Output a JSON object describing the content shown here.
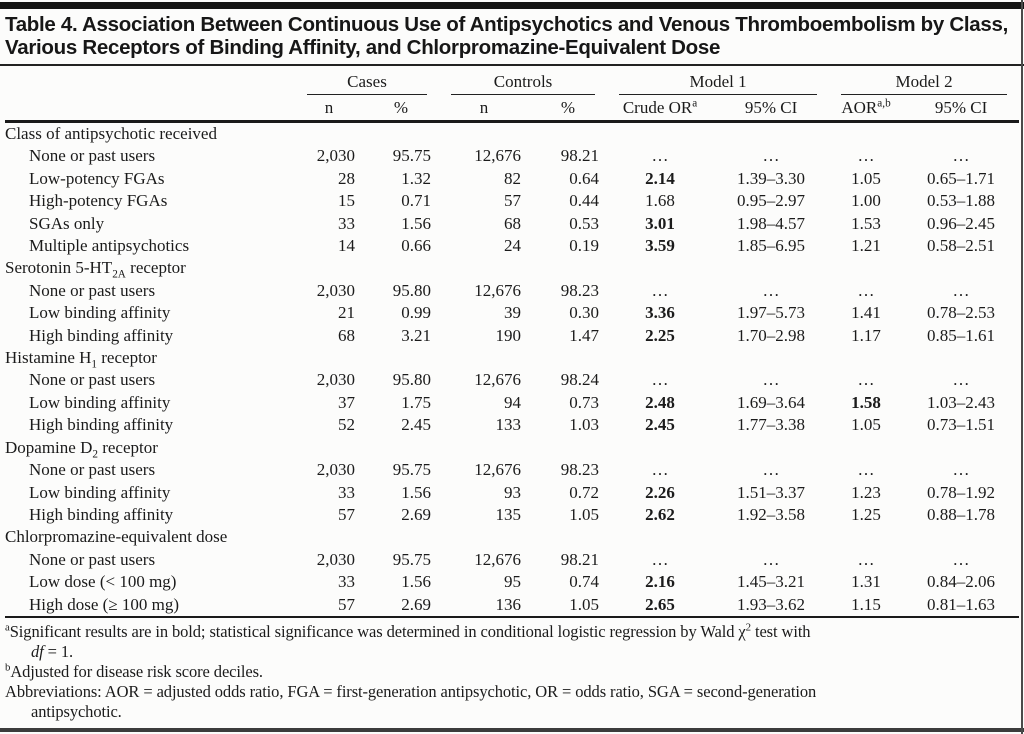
{
  "title": "Table 4. Association Between Continuous Use of Antipsychotics and Venous Thromboembolism by Class, Various Receptors of Binding Affinity, and Chlorpromazine-Equivalent Dose",
  "colors": {
    "background": "#fcfcfb",
    "text": "#1b1b1b",
    "rule": "#1a1a1a"
  },
  "table": {
    "col_groups": [
      {
        "label": "Cases",
        "span": 2
      },
      {
        "label": "Controls",
        "span": 2
      },
      {
        "label": "Model 1",
        "span": 2
      },
      {
        "label": "Model 2",
        "span": 2
      }
    ],
    "sub_headers": [
      [
        {
          "t": "n"
        }
      ],
      [
        {
          "t": "%"
        }
      ],
      [
        {
          "t": "n"
        }
      ],
      [
        {
          "t": "%"
        }
      ],
      [
        {
          "t": "Crude OR"
        },
        {
          "t": "a",
          "sup": true
        }
      ],
      [
        {
          "t": "95% CI"
        }
      ],
      [
        {
          "t": "AOR"
        },
        {
          "t": "a,b",
          "sup": true
        }
      ],
      [
        {
          "t": "95% CI"
        }
      ]
    ],
    "sections": [
      {
        "label": [
          {
            "t": "Class of antipsychotic received"
          }
        ],
        "rows": [
          {
            "label": [
              {
                "t": "None or past users"
              }
            ],
            "cells": [
              "2,030",
              "95.75",
              "12,676",
              "98.21",
              "…",
              "…",
              "…",
              "…"
            ],
            "bold": []
          },
          {
            "label": [
              {
                "t": "Low-potency FGAs"
              }
            ],
            "cells": [
              "28",
              "1.32",
              "82",
              "0.64",
              "2.14",
              "1.39–3.30",
              "1.05",
              "0.65–1.71"
            ],
            "bold": [
              4
            ]
          },
          {
            "label": [
              {
                "t": "High-potency FGAs"
              }
            ],
            "cells": [
              "15",
              "0.71",
              "57",
              "0.44",
              "1.68",
              "0.95–2.97",
              "1.00",
              "0.53–1.88"
            ],
            "bold": []
          },
          {
            "label": [
              {
                "t": "SGAs only"
              }
            ],
            "cells": [
              "33",
              "1.56",
              "68",
              "0.53",
              "3.01",
              "1.98–4.57",
              "1.53",
              "0.96–2.45"
            ],
            "bold": [
              4
            ]
          },
          {
            "label": [
              {
                "t": "Multiple antipsychotics"
              }
            ],
            "cells": [
              "14",
              "0.66",
              "24",
              "0.19",
              "3.59",
              "1.85–6.95",
              "1.21",
              "0.58–2.51"
            ],
            "bold": [
              4
            ]
          }
        ]
      },
      {
        "label": [
          {
            "t": "Serotonin 5-HT"
          },
          {
            "t": "2A",
            "sub": true
          },
          {
            "t": " receptor"
          }
        ],
        "rows": [
          {
            "label": [
              {
                "t": "None or past users"
              }
            ],
            "cells": [
              "2,030",
              "95.80",
              "12,676",
              "98.23",
              "…",
              "…",
              "…",
              "…"
            ],
            "bold": []
          },
          {
            "label": [
              {
                "t": "Low binding affinity"
              }
            ],
            "cells": [
              "21",
              "0.99",
              "39",
              "0.30",
              "3.36",
              "1.97–5.73",
              "1.41",
              "0.78–2.53"
            ],
            "bold": [
              4
            ]
          },
          {
            "label": [
              {
                "t": "High binding affinity"
              }
            ],
            "cells": [
              "68",
              "3.21",
              "190",
              "1.47",
              "2.25",
              "1.70–2.98",
              "1.17",
              "0.85–1.61"
            ],
            "bold": [
              4
            ]
          }
        ]
      },
      {
        "label": [
          {
            "t": "Histamine H"
          },
          {
            "t": "1",
            "sub": true
          },
          {
            "t": " receptor"
          }
        ],
        "rows": [
          {
            "label": [
              {
                "t": "None or past users"
              }
            ],
            "cells": [
              "2,030",
              "95.80",
              "12,676",
              "98.24",
              "…",
              "…",
              "…",
              "…"
            ],
            "bold": []
          },
          {
            "label": [
              {
                "t": "Low binding affinity"
              }
            ],
            "cells": [
              "37",
              "1.75",
              "94",
              "0.73",
              "2.48",
              "1.69–3.64",
              "1.58",
              "1.03–2.43"
            ],
            "bold": [
              4,
              6
            ]
          },
          {
            "label": [
              {
                "t": "High binding affinity"
              }
            ],
            "cells": [
              "52",
              "2.45",
              "133",
              "1.03",
              "2.45",
              "1.77–3.38",
              "1.05",
              "0.73–1.51"
            ],
            "bold": [
              4
            ]
          }
        ]
      },
      {
        "label": [
          {
            "t": "Dopamine D"
          },
          {
            "t": "2",
            "sub": true
          },
          {
            "t": " receptor"
          }
        ],
        "rows": [
          {
            "label": [
              {
                "t": "None or past users"
              }
            ],
            "cells": [
              "2,030",
              "95.75",
              "12,676",
              "98.23",
              "…",
              "…",
              "…",
              "…"
            ],
            "bold": []
          },
          {
            "label": [
              {
                "t": "Low binding affinity"
              }
            ],
            "cells": [
              "33",
              "1.56",
              "93",
              "0.72",
              "2.26",
              "1.51–3.37",
              "1.23",
              "0.78–1.92"
            ],
            "bold": [
              4
            ]
          },
          {
            "label": [
              {
                "t": "High binding affinity"
              }
            ],
            "cells": [
              "57",
              "2.69",
              "135",
              "1.05",
              "2.62",
              "1.92–3.58",
              "1.25",
              "0.88–1.78"
            ],
            "bold": [
              4
            ]
          }
        ]
      },
      {
        "label": [
          {
            "t": "Chlorpromazine-equivalent dose"
          }
        ],
        "rows": [
          {
            "label": [
              {
                "t": "None or past users"
              }
            ],
            "cells": [
              "2,030",
              "95.75",
              "12,676",
              "98.21",
              "…",
              "…",
              "…",
              "…"
            ],
            "bold": []
          },
          {
            "label": [
              {
                "t": "Low dose (< 100 mg)"
              }
            ],
            "cells": [
              "33",
              "1.56",
              "95",
              "0.74",
              "2.16",
              "1.45–3.21",
              "1.31",
              "0.84–2.06"
            ],
            "bold": [
              4
            ]
          },
          {
            "label": [
              {
                "t": "High dose (≥ 100 mg)"
              }
            ],
            "cells": [
              "57",
              "2.69",
              "136",
              "1.05",
              "2.65",
              "1.93–3.62",
              "1.15",
              "0.81–1.63"
            ],
            "bold": [
              4
            ]
          }
        ]
      }
    ]
  },
  "footnotes": [
    {
      "lines": [
        [
          {
            "t": "a",
            "sup": true
          },
          {
            "t": "Significant results are in bold; statistical significance was determined in conditional logistic regression by Wald χ"
          },
          {
            "t": "2",
            "sup": true
          },
          {
            "t": " test with"
          }
        ],
        [
          {
            "t": "df",
            "i": true
          },
          {
            "t": " = 1."
          }
        ]
      ]
    },
    {
      "lines": [
        [
          {
            "t": "b",
            "sup": true
          },
          {
            "t": "Adjusted for disease risk score deciles."
          }
        ]
      ]
    },
    {
      "lines": [
        [
          {
            "t": "Abbreviations: AOR = adjusted odds ratio, FGA = first-generation antipsychotic, OR = odds ratio, SGA = second-generation"
          }
        ],
        [
          {
            "t": "antipsychotic."
          }
        ]
      ]
    }
  ]
}
